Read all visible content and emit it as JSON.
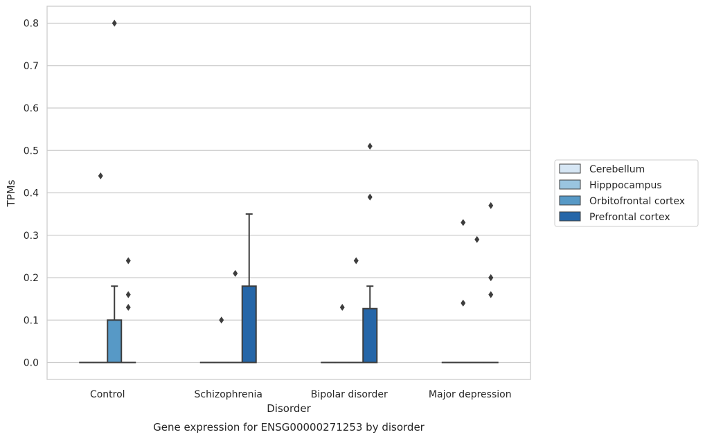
{
  "chart_data": {
    "type": "box",
    "title": "Gene expression for ENSG00000271253 by disorder",
    "xlabel": "Disorder",
    "ylabel": "TPMs",
    "ylim": [
      -0.04,
      0.84
    ],
    "yticks": [
      "0.0",
      "0.1",
      "0.2",
      "0.3",
      "0.4",
      "0.5",
      "0.6",
      "0.7",
      "0.8"
    ],
    "ytick_values": [
      0,
      0.1,
      0.2,
      0.3,
      0.4,
      0.5,
      0.6,
      0.7,
      0.8
    ],
    "categories": [
      "Control",
      "Schizophrenia",
      "Bipolar disorder",
      "Major depression"
    ],
    "grid": "horizontal",
    "legend_position": "right",
    "series": [
      {
        "name": "Cerebellum",
        "color": "#d6e6f4",
        "boxes": [
          {
            "category": "Control",
            "q1": 0,
            "median": 0,
            "q3": 0,
            "whisker_low": 0,
            "whisker_high": 0,
            "outliers": []
          },
          {
            "category": "Schizophrenia",
            "q1": 0,
            "median": 0,
            "q3": 0,
            "whisker_low": 0,
            "whisker_high": 0,
            "outliers": []
          },
          {
            "category": "Bipolar disorder",
            "q1": 0,
            "median": 0,
            "q3": 0,
            "whisker_low": 0,
            "whisker_high": 0,
            "outliers": []
          },
          {
            "category": "Major depression",
            "q1": 0,
            "median": 0,
            "q3": 0,
            "whisker_low": 0,
            "whisker_high": 0,
            "outliers": []
          }
        ]
      },
      {
        "name": "Hipppocampus",
        "color": "#9ac5e0",
        "boxes": [
          {
            "category": "Control",
            "q1": 0,
            "median": 0,
            "q3": 0,
            "whisker_low": 0,
            "whisker_high": 0,
            "outliers": [
              0.44
            ]
          },
          {
            "category": "Schizophrenia",
            "q1": 0,
            "median": 0,
            "q3": 0,
            "whisker_low": 0,
            "whisker_high": 0,
            "outliers": [
              0.1
            ]
          },
          {
            "category": "Bipolar disorder",
            "q1": 0,
            "median": 0,
            "q3": 0,
            "whisker_low": 0,
            "whisker_high": 0,
            "outliers": [
              0.13
            ]
          },
          {
            "category": "Major depression",
            "q1": 0,
            "median": 0,
            "q3": 0,
            "whisker_low": 0,
            "whisker_high": 0,
            "outliers": [
              0.33,
              0.14
            ]
          }
        ]
      },
      {
        "name": "Orbitofrontal cortex",
        "color": "#5799c6",
        "boxes": [
          {
            "category": "Control",
            "q1": 0,
            "median": 0,
            "q3": 0.1,
            "whisker_low": 0,
            "whisker_high": 0.18,
            "outliers": [
              0.8
            ]
          },
          {
            "category": "Schizophrenia",
            "q1": 0,
            "median": 0,
            "q3": 0,
            "whisker_low": 0,
            "whisker_high": 0,
            "outliers": [
              0.21
            ]
          },
          {
            "category": "Bipolar disorder",
            "q1": 0,
            "median": 0,
            "q3": 0,
            "whisker_low": 0,
            "whisker_high": 0,
            "outliers": [
              0.24
            ]
          },
          {
            "category": "Major depression",
            "q1": 0,
            "median": 0,
            "q3": 0,
            "whisker_low": 0,
            "whisker_high": 0,
            "outliers": [
              0.29
            ]
          }
        ]
      },
      {
        "name": "Prefrontal cortex",
        "color": "#2566a8",
        "boxes": [
          {
            "category": "Control",
            "q1": 0,
            "median": 0,
            "q3": 0,
            "whisker_low": 0,
            "whisker_high": 0,
            "outliers": [
              0.24,
              0.16,
              0.13
            ]
          },
          {
            "category": "Schizophrenia",
            "q1": 0,
            "median": 0,
            "q3": 0.18,
            "whisker_low": 0,
            "whisker_high": 0.35,
            "outliers": []
          },
          {
            "category": "Bipolar disorder",
            "q1": 0,
            "median": 0,
            "q3": 0.127,
            "whisker_low": 0,
            "whisker_high": 0.18,
            "outliers": [
              0.51,
              0.39
            ]
          },
          {
            "category": "Major depression",
            "q1": 0,
            "median": 0,
            "q3": 0,
            "whisker_low": 0,
            "whisker_high": 0,
            "outliers": [
              0.37,
              0.2,
              0.2,
              0.16
            ]
          }
        ]
      }
    ]
  }
}
